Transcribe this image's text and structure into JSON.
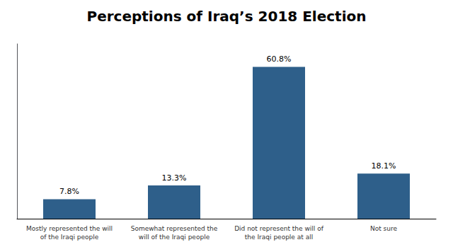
{
  "chart_data": {
    "type": "bar",
    "title": "Perceptions of Iraq’s 2018 Election",
    "categories": [
      "Mostly represented the will\nof the Iraqi people",
      "Somewhat represented the\nwill of the Iraqi people",
      "Did not represent the will of\nthe Iraqi people at all",
      "Not sure"
    ],
    "values": [
      7.8,
      13.3,
      60.8,
      18.1
    ],
    "value_labels": [
      "7.8%",
      "13.3%",
      "60.8%",
      "18.1%"
    ],
    "color": "#2E5F8A",
    "ylim": [
      0,
      70
    ],
    "grid": false,
    "data_labels": true,
    "tick_labels": "x"
  }
}
